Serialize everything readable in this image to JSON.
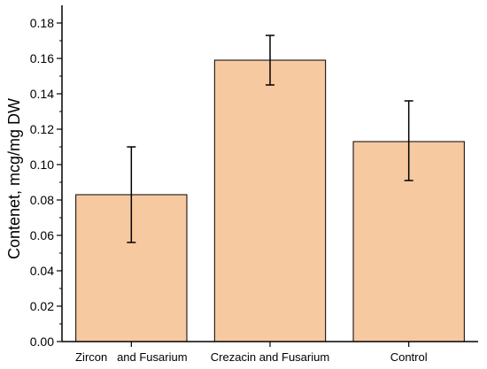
{
  "chart_data": {
    "type": "bar",
    "categories": [
      "Zircon   and Fusarium",
      "Crezacin and Fusarium",
      "Control"
    ],
    "values": [
      0.083,
      0.159,
      0.113
    ],
    "error_low": [
      0.056,
      0.145,
      0.091
    ],
    "error_high": [
      0.11,
      0.173,
      0.136
    ],
    "xlabel": "",
    "ylabel": "Contenet, mcg/mg DW",
    "ylim": [
      0,
      0.19
    ],
    "yticks": [
      "0.00",
      "0.02",
      "0.04",
      "0.06",
      "0.08",
      "0.10",
      "0.12",
      "0.14",
      "0.16",
      "0.18"
    ],
    "grid": false,
    "bar_color": "#f7c9a1",
    "bar_edge_color": "#000000"
  }
}
